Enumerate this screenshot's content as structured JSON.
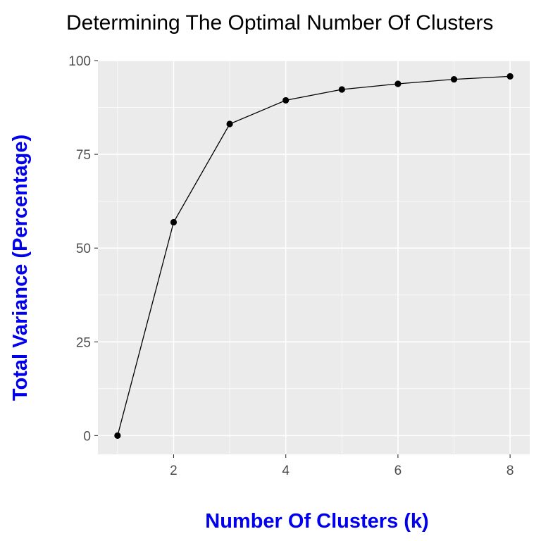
{
  "chart_data": {
    "type": "line",
    "title": "Determining The Optimal Number Of Clusters",
    "xlabel": "Number Of Clusters (k)",
    "ylabel": "Total Variance (Percentage)",
    "x": [
      1,
      2,
      3,
      4,
      5,
      6,
      7,
      8
    ],
    "series": [
      {
        "values": [
          0,
          56.9,
          83.1,
          89.4,
          92.3,
          93.8,
          95.0,
          95.8
        ]
      }
    ],
    "xlim": [
      0.65,
      8.35
    ],
    "ylim": [
      -5,
      100
    ],
    "x_ticks": [
      "2",
      "4",
      "6",
      "8"
    ],
    "y_ticks": [
      "0",
      "25",
      "50",
      "75",
      "100"
    ],
    "grid": true,
    "panel_color": "#ebebeb",
    "axis_label_color": "#0000ee",
    "line_color": "#000000"
  }
}
